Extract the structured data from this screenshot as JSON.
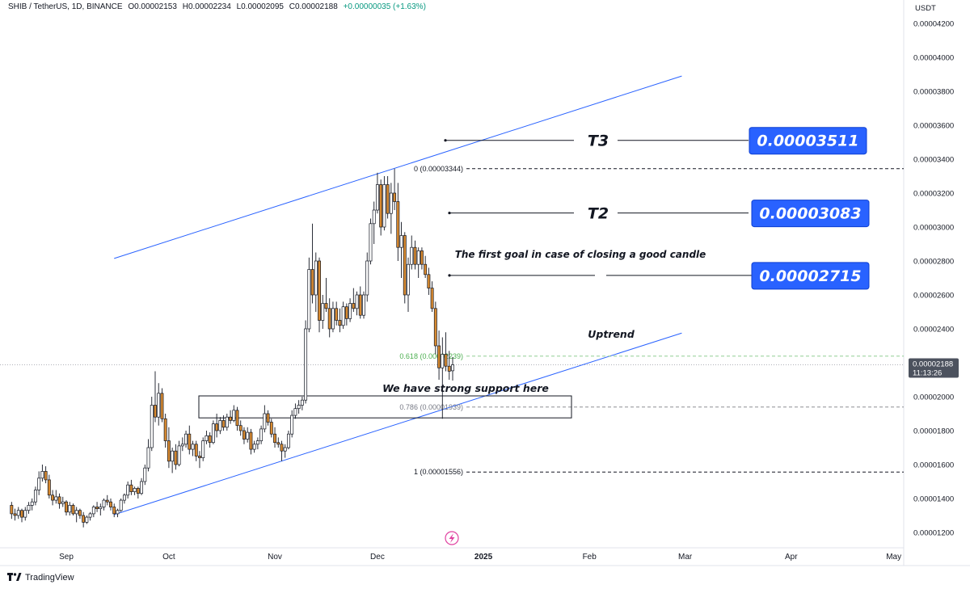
{
  "header": {
    "symbol": "SHIB / TetherUS, 1D, BINANCE",
    "open": "O0.00002153",
    "high": "H0.00002234",
    "low": "L0.00002095",
    "close": "C0.00002188",
    "change": "+0.00000035 (+1.63%)"
  },
  "currency": "USDT",
  "current_price": {
    "value": "0.00002188",
    "countdown": "11:13:26"
  },
  "branding": "TradingView",
  "colors": {
    "up": "#ffffff",
    "down": "#d88a30",
    "wick": "#131722",
    "trendline": "#2962ff",
    "target_box": "#2962ff",
    "fib_green": "#4caf50",
    "fib_gray": "#787b86"
  },
  "annotations": {
    "t3_label": "T3",
    "t2_label": "T2",
    "goal_text": "The first goal in case of closing a good candle",
    "uptrend_text": "Uptrend",
    "support_text": "We have strong support here",
    "t3_value": "0.00003511",
    "t2_value": "0.00003083",
    "t1_value": "0.00002715"
  },
  "fib_levels": [
    {
      "label": "0 (0.00003344)",
      "price": 3.344e-05
    },
    {
      "label": "0.618 (0.00002239)",
      "price": 2.239e-05
    },
    {
      "label": "0.786 (0.00001939)",
      "price": 1.939e-05
    },
    {
      "label": "1 (0.00001556)",
      "price": 1.556e-05
    }
  ],
  "chart_data": {
    "type": "candlestick",
    "x_axis": [
      "Sep",
      "Oct",
      "Nov",
      "Dec",
      "2025",
      "Feb",
      "Mar",
      "Apr",
      "May"
    ],
    "y_axis": [
      "0.00004200",
      "0.00004000",
      "0.00003800",
      "0.00003600",
      "0.00003400",
      "0.00003200",
      "0.00003000",
      "0.00002800",
      "0.00002600",
      "0.00002400",
      "0.00002200",
      "0.00002000",
      "0.00001800",
      "0.00001600",
      "0.00001400",
      "0.00001200"
    ],
    "ylim": [
      1.1e-05,
      4.25e-05
    ],
    "targets": [
      3.511e-05,
      3.083e-05,
      2.715e-05
    ],
    "support_zone": [
      1.88e-05,
      2e-05
    ],
    "channel": {
      "upper": [
        [
          "2024-09-15",
          2.815e-05
        ],
        [
          "2025-02-28",
          3.89e-05
        ]
      ],
      "lower": [
        [
          "2024-09-15",
          1.305e-05
        ],
        [
          "2025-02-28",
          2.375e-05
        ]
      ]
    },
    "candles": [
      [
        "2024-08-16",
        1.36e-05,
        1.38e-05,
        1.28e-05,
        1.31e-05
      ],
      [
        "2024-08-17",
        1.31e-05,
        1.34e-05,
        1.27e-05,
        1.3e-05
      ],
      [
        "2024-08-18",
        1.3e-05,
        1.35e-05,
        1.28e-05,
        1.33e-05
      ],
      [
        "2024-08-19",
        1.33e-05,
        1.34e-05,
        1.26e-05,
        1.29e-05
      ],
      [
        "2024-08-20",
        1.29e-05,
        1.35e-05,
        1.27e-05,
        1.33e-05
      ],
      [
        "2024-08-21",
        1.33e-05,
        1.38e-05,
        1.31e-05,
        1.36e-05
      ],
      [
        "2024-08-22",
        1.36e-05,
        1.4e-05,
        1.33e-05,
        1.38e-05
      ],
      [
        "2024-08-23",
        1.38e-05,
        1.47e-05,
        1.36e-05,
        1.45e-05
      ],
      [
        "2024-08-24",
        1.45e-05,
        1.56e-05,
        1.42e-05,
        1.52e-05
      ],
      [
        "2024-08-25",
        1.52e-05,
        1.6e-05,
        1.5e-05,
        1.56e-05
      ],
      [
        "2024-08-26",
        1.56e-05,
        1.59e-05,
        1.49e-05,
        1.51e-05
      ],
      [
        "2024-08-27",
        1.51e-05,
        1.54e-05,
        1.4e-05,
        1.42e-05
      ],
      [
        "2024-08-28",
        1.42e-05,
        1.45e-05,
        1.36e-05,
        1.39e-05
      ],
      [
        "2024-08-29",
        1.39e-05,
        1.45e-05,
        1.37e-05,
        1.41e-05
      ],
      [
        "2024-08-30",
        1.41e-05,
        1.43e-05,
        1.34e-05,
        1.37e-05
      ],
      [
        "2024-08-31",
        1.37e-05,
        1.41e-05,
        1.35e-05,
        1.38e-05
      ],
      [
        "2024-09-01",
        1.38e-05,
        1.39e-05,
        1.3e-05,
        1.32e-05
      ],
      [
        "2024-09-02",
        1.32e-05,
        1.38e-05,
        1.3e-05,
        1.36e-05
      ],
      [
        "2024-09-03",
        1.36e-05,
        1.37e-05,
        1.3e-05,
        1.31e-05
      ],
      [
        "2024-09-04",
        1.31e-05,
        1.35e-05,
        1.26e-05,
        1.33e-05
      ],
      [
        "2024-09-05",
        1.33e-05,
        1.34e-05,
        1.28e-05,
        1.3e-05
      ],
      [
        "2024-09-06",
        1.3e-05,
        1.32e-05,
        1.23e-05,
        1.26e-05
      ],
      [
        "2024-09-07",
        1.26e-05,
        1.3e-05,
        1.25e-05,
        1.29e-05
      ],
      [
        "2024-09-08",
        1.29e-05,
        1.32e-05,
        1.27e-05,
        1.31e-05
      ],
      [
        "2024-09-09",
        1.31e-05,
        1.36e-05,
        1.29e-05,
        1.35e-05
      ],
      [
        "2024-09-10",
        1.35e-05,
        1.38e-05,
        1.32e-05,
        1.34e-05
      ],
      [
        "2024-09-11",
        1.34e-05,
        1.37e-05,
        1.3e-05,
        1.35e-05
      ],
      [
        "2024-09-12",
        1.35e-05,
        1.4e-05,
        1.33e-05,
        1.39e-05
      ],
      [
        "2024-09-13",
        1.39e-05,
        1.42e-05,
        1.36e-05,
        1.38e-05
      ],
      [
        "2024-09-14",
        1.38e-05,
        1.4e-05,
        1.33e-05,
        1.35e-05
      ],
      [
        "2024-09-15",
        1.35e-05,
        1.37e-05,
        1.29e-05,
        1.31e-05
      ],
      [
        "2024-09-16",
        1.31e-05,
        1.34e-05,
        1.29e-05,
        1.33e-05
      ],
      [
        "2024-09-17",
        1.33e-05,
        1.4e-05,
        1.32e-05,
        1.39e-05
      ],
      [
        "2024-09-18",
        1.39e-05,
        1.43e-05,
        1.37e-05,
        1.42e-05
      ],
      [
        "2024-09-19",
        1.42e-05,
        1.5e-05,
        1.4e-05,
        1.48e-05
      ],
      [
        "2024-09-20",
        1.48e-05,
        1.51e-05,
        1.42e-05,
        1.44e-05
      ],
      [
        "2024-09-21",
        1.44e-05,
        1.47e-05,
        1.42e-05,
        1.46e-05
      ],
      [
        "2024-09-22",
        1.46e-05,
        1.47e-05,
        1.4e-05,
        1.43e-05
      ],
      [
        "2024-09-23",
        1.43e-05,
        1.52e-05,
        1.42e-05,
        1.5e-05
      ],
      [
        "2024-09-24",
        1.5e-05,
        1.6e-05,
        1.48e-05,
        1.58e-05
      ],
      [
        "2024-09-25",
        1.58e-05,
        1.75e-05,
        1.56e-05,
        1.7e-05
      ],
      [
        "2024-09-26",
        1.7e-05,
        2e-05,
        1.68e-05,
        1.95e-05
      ],
      [
        "2024-09-27",
        1.95e-05,
        2.15e-05,
        1.85e-05,
        1.88e-05
      ],
      [
        "2024-09-28",
        1.88e-05,
        2.08e-05,
        1.83e-05,
        2.02e-05
      ],
      [
        "2024-09-29",
        2.02e-05,
        2.05e-05,
        1.85e-05,
        1.87e-05
      ],
      [
        "2024-09-30",
        1.87e-05,
        1.9e-05,
        1.7e-05,
        1.74e-05
      ],
      [
        "2024-10-01",
        1.74e-05,
        1.82e-05,
        1.58e-05,
        1.62e-05
      ],
      [
        "2024-10-02",
        1.62e-05,
        1.7e-05,
        1.55e-05,
        1.68e-05
      ],
      [
        "2024-10-03",
        1.68e-05,
        1.72e-05,
        1.57e-05,
        1.6e-05
      ],
      [
        "2024-10-04",
        1.6e-05,
        1.74e-05,
        1.59e-05,
        1.71e-05
      ],
      [
        "2024-10-05",
        1.71e-05,
        1.76e-05,
        1.68e-05,
        1.72e-05
      ],
      [
        "2024-10-06",
        1.72e-05,
        1.8e-05,
        1.7e-05,
        1.78e-05
      ],
      [
        "2024-10-07",
        1.78e-05,
        1.83e-05,
        1.66e-05,
        1.69e-05
      ],
      [
        "2024-10-08",
        1.69e-05,
        1.74e-05,
        1.65e-05,
        1.72e-05
      ],
      [
        "2024-10-09",
        1.72e-05,
        1.74e-05,
        1.62e-05,
        1.65e-05
      ],
      [
        "2024-10-10",
        1.65e-05,
        1.68e-05,
        1.58e-05,
        1.64e-05
      ],
      [
        "2024-10-11",
        1.64e-05,
        1.76e-05,
        1.62e-05,
        1.74e-05
      ],
      [
        "2024-10-12",
        1.74e-05,
        1.8e-05,
        1.72e-05,
        1.77e-05
      ],
      [
        "2024-10-13",
        1.77e-05,
        1.79e-05,
        1.7e-05,
        1.73e-05
      ],
      [
        "2024-10-14",
        1.73e-05,
        1.86e-05,
        1.72e-05,
        1.84e-05
      ],
      [
        "2024-10-15",
        1.84e-05,
        1.9e-05,
        1.76e-05,
        1.8e-05
      ],
      [
        "2024-10-16",
        1.8e-05,
        1.88e-05,
        1.78e-05,
        1.86e-05
      ],
      [
        "2024-10-17",
        1.86e-05,
        1.89e-05,
        1.8e-05,
        1.82e-05
      ],
      [
        "2024-10-18",
        1.82e-05,
        1.9e-05,
        1.8e-05,
        1.88e-05
      ],
      [
        "2024-10-19",
        1.88e-05,
        1.92e-05,
        1.84e-05,
        1.86e-05
      ],
      [
        "2024-10-20",
        1.86e-05,
        1.95e-05,
        1.85e-05,
        1.92e-05
      ],
      [
        "2024-10-21",
        1.92e-05,
        1.94e-05,
        1.8e-05,
        1.83e-05
      ],
      [
        "2024-10-22",
        1.83e-05,
        1.86e-05,
        1.77e-05,
        1.8e-05
      ],
      [
        "2024-10-23",
        1.8e-05,
        1.82e-05,
        1.72e-05,
        1.75e-05
      ],
      [
        "2024-10-24",
        1.75e-05,
        1.82e-05,
        1.73e-05,
        1.79e-05
      ],
      [
        "2024-10-25",
        1.79e-05,
        1.81e-05,
        1.66e-05,
        1.69e-05
      ],
      [
        "2024-10-26",
        1.69e-05,
        1.74e-05,
        1.67e-05,
        1.72e-05
      ],
      [
        "2024-10-27",
        1.72e-05,
        1.76e-05,
        1.69e-05,
        1.74e-05
      ],
      [
        "2024-10-28",
        1.74e-05,
        1.83e-05,
        1.72e-05,
        1.81e-05
      ],
      [
        "2024-10-29",
        1.81e-05,
        1.95e-05,
        1.79e-05,
        1.9e-05
      ],
      [
        "2024-10-30",
        1.9e-05,
        1.92e-05,
        1.83e-05,
        1.85e-05
      ],
      [
        "2024-10-31",
        1.85e-05,
        1.87e-05,
        1.76e-05,
        1.78e-05
      ],
      [
        "2024-11-01",
        1.78e-05,
        1.82e-05,
        1.7e-05,
        1.73e-05
      ],
      [
        "2024-11-02",
        1.73e-05,
        1.76e-05,
        1.7e-05,
        1.72e-05
      ],
      [
        "2024-11-03",
        1.72e-05,
        1.74e-05,
        1.62e-05,
        1.68e-05
      ],
      [
        "2024-11-04",
        1.68e-05,
        1.72e-05,
        1.64e-05,
        1.7e-05
      ],
      [
        "2024-11-05",
        1.7e-05,
        1.8e-05,
        1.69e-05,
        1.78e-05
      ],
      [
        "2024-11-06",
        1.78e-05,
        1.92e-05,
        1.76e-05,
        1.89e-05
      ],
      [
        "2024-11-07",
        1.89e-05,
        1.96e-05,
        1.87e-05,
        1.93e-05
      ],
      [
        "2024-11-08",
        1.93e-05,
        1.98e-05,
        1.9e-05,
        1.95e-05
      ],
      [
        "2024-11-09",
        1.95e-05,
        2e-05,
        1.92e-05,
        1.98e-05
      ],
      [
        "2024-11-10",
        1.98e-05,
        2.45e-05,
        1.96e-05,
        2.4e-05
      ],
      [
        "2024-11-11",
        2.4e-05,
        2.82e-05,
        2.38e-05,
        2.75e-05
      ],
      [
        "2024-11-12",
        2.75e-05,
        3.02e-05,
        2.55e-05,
        2.6e-05
      ],
      [
        "2024-11-13",
        2.6e-05,
        2.85e-05,
        2.5e-05,
        2.8e-05
      ],
      [
        "2024-11-14",
        2.8e-05,
        2.82e-05,
        2.38e-05,
        2.45e-05
      ],
      [
        "2024-11-15",
        2.45e-05,
        2.6e-05,
        2.4e-05,
        2.55e-05
      ],
      [
        "2024-11-16",
        2.55e-05,
        2.7e-05,
        2.5e-05,
        2.52e-05
      ],
      [
        "2024-11-17",
        2.52e-05,
        2.58e-05,
        2.35e-05,
        2.4e-05
      ],
      [
        "2024-11-18",
        2.4e-05,
        2.56e-05,
        2.38e-05,
        2.52e-05
      ],
      [
        "2024-11-19",
        2.52e-05,
        2.56e-05,
        2.42e-05,
        2.45e-05
      ],
      [
        "2024-11-20",
        2.45e-05,
        2.52e-05,
        2.38e-05,
        2.42e-05
      ],
      [
        "2024-11-21",
        2.42e-05,
        2.56e-05,
        2.4e-05,
        2.53e-05
      ],
      [
        "2024-11-22",
        2.53e-05,
        2.55e-05,
        2.42e-05,
        2.46e-05
      ],
      [
        "2024-11-23",
        2.46e-05,
        2.58e-05,
        2.44e-05,
        2.55e-05
      ],
      [
        "2024-11-24",
        2.55e-05,
        2.64e-05,
        2.5e-05,
        2.52e-05
      ],
      [
        "2024-11-25",
        2.52e-05,
        2.62e-05,
        2.48e-05,
        2.6e-05
      ],
      [
        "2024-11-26",
        2.6e-05,
        2.65e-05,
        2.46e-05,
        2.48e-05
      ],
      [
        "2024-11-27",
        2.48e-05,
        2.62e-05,
        2.46e-05,
        2.6e-05
      ],
      [
        "2024-11-28",
        2.6e-05,
        2.85e-05,
        2.56e-05,
        2.8e-05
      ],
      [
        "2024-11-29",
        2.8e-05,
        3.05e-05,
        2.78e-05,
        3.02e-05
      ],
      [
        "2024-11-30",
        3.02e-05,
        3.15e-05,
        2.9e-05,
        3.1e-05
      ],
      [
        "2024-12-01",
        3.1e-05,
        3.32e-05,
        3.08e-05,
        3.25e-05
      ],
      [
        "2024-12-02",
        3.25e-05,
        3.28e-05,
        2.95e-05,
        3e-05
      ],
      [
        "2024-12-03",
        3e-05,
        3.3e-05,
        2.98e-05,
        3.25e-05
      ],
      [
        "2024-12-04",
        3.25e-05,
        3.3e-05,
        3.05e-05,
        3.08e-05
      ],
      [
        "2024-12-05",
        3.08e-05,
        3.26e-05,
        2.96e-05,
        3.2e-05
      ],
      [
        "2024-12-06",
        3.2e-05,
        3.344e-05,
        3.1e-05,
        3.15e-05
      ],
      [
        "2024-12-07",
        3.15e-05,
        3.26e-05,
        2.8e-05,
        2.88e-05
      ],
      [
        "2024-12-08",
        2.88e-05,
        3.03e-05,
        2.7e-05,
        2.95e-05
      ],
      [
        "2024-12-09",
        2.95e-05,
        2.97e-05,
        2.55e-05,
        2.6e-05
      ],
      [
        "2024-12-10",
        2.6e-05,
        2.82e-05,
        2.5e-05,
        2.78e-05
      ],
      [
        "2024-12-11",
        2.78e-05,
        2.95e-05,
        2.75e-05,
        2.88e-05
      ],
      [
        "2024-12-12",
        2.88e-05,
        2.92e-05,
        2.75e-05,
        2.78e-05
      ],
      [
        "2024-12-13",
        2.78e-05,
        2.88e-05,
        2.7e-05,
        2.86e-05
      ],
      [
        "2024-12-14",
        2.86e-05,
        2.88e-05,
        2.75e-05,
        2.78e-05
      ],
      [
        "2024-12-15",
        2.78e-05,
        2.83e-05,
        2.7e-05,
        2.72e-05
      ],
      [
        "2024-12-16",
        2.72e-05,
        2.76e-05,
        2.6e-05,
        2.64e-05
      ],
      [
        "2024-12-17",
        2.64e-05,
        2.68e-05,
        2.5e-05,
        2.52e-05
      ],
      [
        "2024-12-18",
        2.52e-05,
        2.56e-05,
        2.25e-05,
        2.3e-05
      ],
      [
        "2024-12-19",
        2.3e-05,
        2.39e-05,
        2.1e-05,
        2.17e-05
      ],
      [
        "2024-12-20",
        2.17e-05,
        2.35e-05,
        1.87e-05,
        2.25e-05
      ],
      [
        "2024-12-21",
        2.25e-05,
        2.38e-05,
        2.15e-05,
        2.18e-05
      ],
      [
        "2024-12-22",
        2.18e-05,
        2.27e-05,
        2.1e-05,
        2.15e-05
      ],
      [
        "2024-12-23",
        2.153e-05,
        2.234e-05,
        2.095e-05,
        2.188e-05
      ]
    ]
  }
}
